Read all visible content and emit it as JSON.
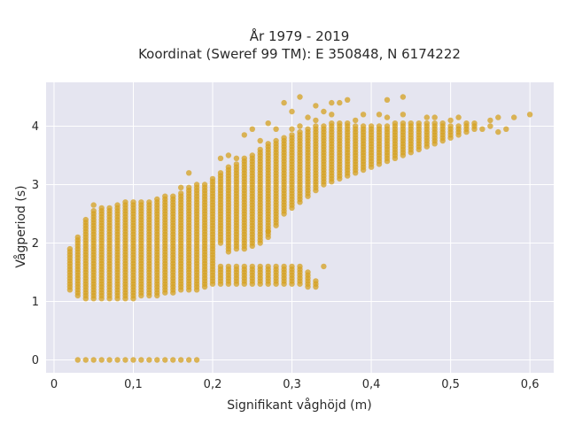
{
  "chart_data": {
    "type": "scatter",
    "title_lines": [
      "År 1979 - 2019",
      "Koordinat (Sweref 99 TM): E 350848, N 6174222"
    ],
    "xlabel": "Signifikant våghöjd (m)",
    "ylabel": "Vågperiod (s)",
    "xlim": [
      -0.01,
      0.63
    ],
    "ylim": [
      -0.22,
      4.75
    ],
    "x_ticks": [
      {
        "value": 0,
        "label": "0"
      },
      {
        "value": 0.1,
        "label": "0,1"
      },
      {
        "value": 0.2,
        "label": "0,2"
      },
      {
        "value": 0.3,
        "label": "0,3"
      },
      {
        "value": 0.4,
        "label": "0,4"
      },
      {
        "value": 0.5,
        "label": "0,5"
      },
      {
        "value": 0.6,
        "label": "0,6"
      }
    ],
    "y_ticks": [
      {
        "value": 0,
        "label": "0"
      },
      {
        "value": 1,
        "label": "1"
      },
      {
        "value": 2,
        "label": "2"
      },
      {
        "value": 3,
        "label": "3"
      },
      {
        "value": 4,
        "label": "4"
      }
    ],
    "grid": true,
    "point_color": "#d4a020",
    "background_color": "#e5e5f0",
    "columns": [
      {
        "x": 0.02,
        "segments": [
          [
            1.2,
            1.9
          ]
        ]
      },
      {
        "x": 0.03,
        "segments": [
          [
            1.1,
            2.1
          ]
        ],
        "extra": [
          0
        ]
      },
      {
        "x": 0.04,
        "segments": [
          [
            1.05,
            2.4
          ]
        ],
        "extra": [
          0
        ]
      },
      {
        "x": 0.05,
        "segments": [
          [
            1.05,
            2.55
          ]
        ],
        "extra": [
          0,
          2.65
        ]
      },
      {
        "x": 0.06,
        "segments": [
          [
            1.05,
            2.6
          ]
        ],
        "extra": [
          0
        ]
      },
      {
        "x": 0.07,
        "segments": [
          [
            1.05,
            2.6
          ]
        ],
        "extra": [
          0
        ]
      },
      {
        "x": 0.08,
        "segments": [
          [
            1.05,
            2.65
          ]
        ],
        "extra": [
          0
        ]
      },
      {
        "x": 0.09,
        "segments": [
          [
            1.05,
            2.7
          ]
        ],
        "extra": [
          0
        ]
      },
      {
        "x": 0.1,
        "segments": [
          [
            1.05,
            2.7
          ]
        ],
        "extra": [
          0
        ]
      },
      {
        "x": 0.11,
        "segments": [
          [
            1.1,
            2.7
          ]
        ],
        "extra": [
          0
        ]
      },
      {
        "x": 0.12,
        "segments": [
          [
            1.1,
            2.7
          ]
        ],
        "extra": [
          0
        ]
      },
      {
        "x": 0.13,
        "segments": [
          [
            1.1,
            2.75
          ]
        ],
        "extra": [
          0
        ]
      },
      {
        "x": 0.14,
        "segments": [
          [
            1.15,
            2.8
          ]
        ],
        "extra": [
          0
        ]
      },
      {
        "x": 0.15,
        "segments": [
          [
            1.15,
            2.8
          ]
        ],
        "extra": [
          0
        ]
      },
      {
        "x": 0.16,
        "segments": [
          [
            1.2,
            2.85
          ]
        ],
        "extra": [
          0,
          2.95
        ]
      },
      {
        "x": 0.17,
        "segments": [
          [
            1.2,
            2.95
          ]
        ],
        "extra": [
          0,
          3.2
        ]
      },
      {
        "x": 0.18,
        "segments": [
          [
            1.2,
            3.0
          ]
        ],
        "extra": [
          0
        ]
      },
      {
        "x": 0.19,
        "segments": [
          [
            1.25,
            3.0
          ]
        ]
      },
      {
        "x": 0.2,
        "segments": [
          [
            1.3,
            3.1
          ]
        ]
      },
      {
        "x": 0.21,
        "segments": [
          [
            1.3,
            1.6
          ],
          [
            2.0,
            3.2
          ]
        ],
        "extra": [
          3.45
        ]
      },
      {
        "x": 0.22,
        "segments": [
          [
            1.3,
            1.6
          ],
          [
            1.85,
            3.3
          ]
        ],
        "extra": [
          3.5
        ]
      },
      {
        "x": 0.23,
        "segments": [
          [
            1.3,
            1.6
          ],
          [
            1.9,
            3.35
          ]
        ],
        "extra": [
          3.45
        ]
      },
      {
        "x": 0.24,
        "segments": [
          [
            1.3,
            1.6
          ],
          [
            1.9,
            3.45
          ]
        ],
        "extra": [
          3.85
        ]
      },
      {
        "x": 0.25,
        "segments": [
          [
            1.3,
            1.6
          ],
          [
            1.95,
            3.5
          ]
        ],
        "extra": [
          3.95
        ]
      },
      {
        "x": 0.26,
        "segments": [
          [
            1.3,
            1.6
          ],
          [
            2.0,
            3.6
          ]
        ],
        "extra": [
          3.75
        ]
      },
      {
        "x": 0.27,
        "segments": [
          [
            1.3,
            1.6
          ],
          [
            2.1,
            3.7
          ]
        ],
        "extra": [
          4.05,
          2.2
        ]
      },
      {
        "x": 0.28,
        "segments": [
          [
            1.3,
            1.6
          ],
          [
            2.3,
            3.75
          ]
        ],
        "extra": [
          3.95
        ]
      },
      {
        "x": 0.29,
        "segments": [
          [
            1.3,
            1.6
          ],
          [
            2.5,
            3.8
          ]
        ],
        "extra": [
          4.4
        ]
      },
      {
        "x": 0.3,
        "segments": [
          [
            1.3,
            1.6
          ],
          [
            2.6,
            3.85
          ]
        ],
        "extra": [
          4.25,
          3.95
        ]
      },
      {
        "x": 0.31,
        "segments": [
          [
            1.3,
            1.6
          ],
          [
            2.7,
            3.9
          ]
        ],
        "extra": [
          4.5,
          4.0
        ]
      },
      {
        "x": 0.32,
        "segments": [
          [
            1.25,
            1.5
          ],
          [
            2.8,
            3.95
          ]
        ],
        "extra": [
          4.15
        ]
      },
      {
        "x": 0.33,
        "segments": [
          [
            1.25,
            1.35
          ],
          [
            2.9,
            4.0
          ]
        ],
        "extra": [
          4.35,
          4.1
        ]
      },
      {
        "x": 0.34,
        "segments": [
          [
            3.0,
            4.0
          ]
        ],
        "extra": [
          1.6,
          4.25
        ]
      },
      {
        "x": 0.35,
        "segments": [
          [
            3.05,
            4.05
          ]
        ],
        "extra": [
          4.4,
          4.2
        ]
      },
      {
        "x": 0.36,
        "segments": [
          [
            3.1,
            4.05
          ]
        ],
        "extra": [
          4.4
        ]
      },
      {
        "x": 0.37,
        "segments": [
          [
            3.15,
            4.05
          ]
        ],
        "extra": [
          4.45
        ]
      },
      {
        "x": 0.38,
        "segments": [
          [
            3.2,
            4.0
          ]
        ],
        "extra": [
          4.1
        ]
      },
      {
        "x": 0.39,
        "segments": [
          [
            3.25,
            4.0
          ]
        ],
        "extra": [
          4.2
        ]
      },
      {
        "x": 0.4,
        "segments": [
          [
            3.3,
            4.0
          ]
        ]
      },
      {
        "x": 0.41,
        "segments": [
          [
            3.35,
            4.0
          ]
        ],
        "extra": [
          4.2
        ]
      },
      {
        "x": 0.42,
        "segments": [
          [
            3.4,
            4.0
          ]
        ],
        "extra": [
          4.45,
          4.15
        ]
      },
      {
        "x": 0.43,
        "segments": [
          [
            3.45,
            4.05
          ]
        ]
      },
      {
        "x": 0.44,
        "segments": [
          [
            3.5,
            4.05
          ]
        ],
        "extra": [
          4.5,
          4.2
        ]
      },
      {
        "x": 0.45,
        "segments": [
          [
            3.55,
            4.05
          ]
        ]
      },
      {
        "x": 0.46,
        "segments": [
          [
            3.6,
            4.05
          ]
        ]
      },
      {
        "x": 0.47,
        "segments": [
          [
            3.65,
            4.05
          ]
        ],
        "extra": [
          4.15
        ]
      },
      {
        "x": 0.48,
        "segments": [
          [
            3.7,
            4.05
          ]
        ],
        "extra": [
          4.15
        ]
      },
      {
        "x": 0.49,
        "segments": [
          [
            3.75,
            4.05
          ]
        ]
      },
      {
        "x": 0.5,
        "segments": [
          [
            3.8,
            4.0
          ]
        ],
        "extra": [
          4.1
        ]
      },
      {
        "x": 0.51,
        "segments": [
          [
            3.85,
            4.0
          ]
        ],
        "extra": [
          4.15
        ]
      },
      {
        "x": 0.52,
        "segments": [
          [
            3.9,
            4.05
          ]
        ]
      },
      {
        "x": 0.53,
        "segments": [
          [
            3.95,
            4.05
          ]
        ]
      },
      {
        "x": 0.54,
        "segments": [],
        "extra": [
          3.95
        ]
      },
      {
        "x": 0.55,
        "segments": [],
        "extra": [
          4.1,
          4.0
        ]
      },
      {
        "x": 0.56,
        "segments": [],
        "extra": [
          4.15,
          3.9
        ]
      },
      {
        "x": 0.57,
        "segments": [],
        "extra": [
          3.95
        ]
      },
      {
        "x": 0.58,
        "segments": [],
        "extra": [
          4.15
        ]
      },
      {
        "x": 0.6,
        "segments": [],
        "extra": [
          4.2
        ]
      }
    ]
  }
}
